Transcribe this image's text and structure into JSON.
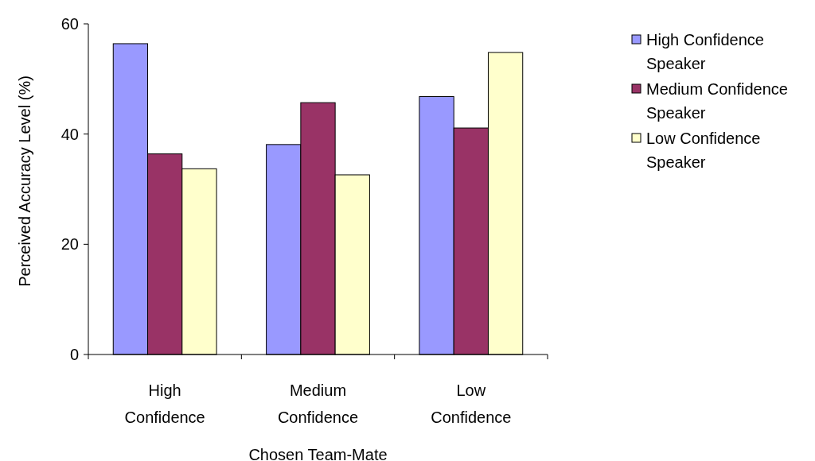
{
  "chart_data": {
    "type": "bar",
    "xlabel": "Chosen Team-Mate",
    "ylabel": "Perceived Accuracy Level (%)",
    "categories": [
      "High Confidence",
      "Medium Confidence",
      "Low Confidence"
    ],
    "series": [
      {
        "name": "High Confidence Speaker",
        "color": "#9999ff",
        "values": [
          56.4,
          38.1,
          46.8
        ]
      },
      {
        "name": "Medium Confidence Speaker",
        "color": "#993366",
        "values": [
          36.4,
          45.7,
          41.1
        ]
      },
      {
        "name": "Low Confidence Speaker",
        "color": "#ffffcc",
        "values": [
          33.7,
          32.6,
          54.8
        ]
      }
    ],
    "ylim": [
      0,
      60
    ],
    "yticks": [
      0,
      20,
      40,
      60
    ],
    "grid": false,
    "legend": "right"
  }
}
